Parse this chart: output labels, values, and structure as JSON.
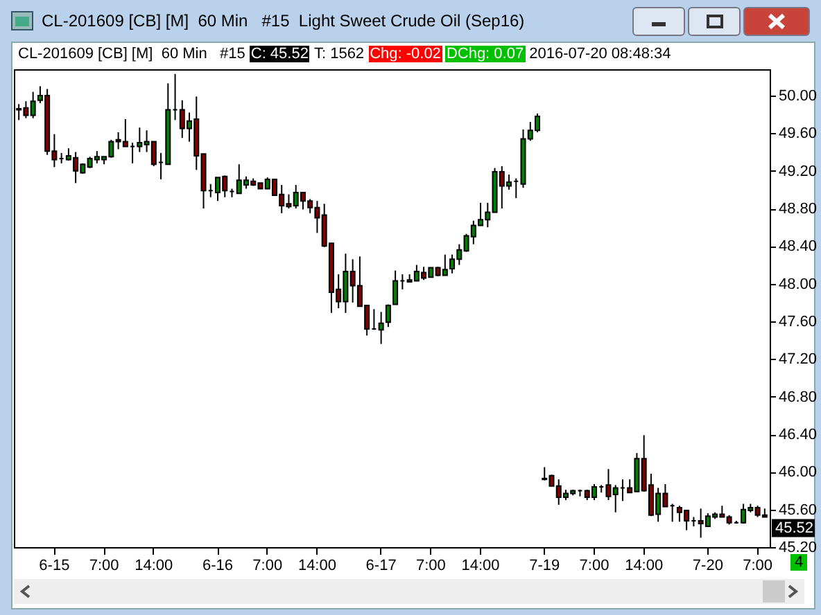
{
  "chart_data": {
    "type": "candlestick",
    "title": "CL-201609 [CB] [M]  60 Min   #15  Light Sweet Crude Oil (Sep16)",
    "subtitle": "CL-201609 [CB] [M]  60 Min   #15",
    "annotations": [
      "C: 45.52",
      "T: 1562",
      "Chg: -0.02",
      "DChg: 0.07",
      "2016-07-20 08:48:34",
      "4",
      "45.52"
    ],
    "categories": [
      null,
      null,
      null,
      null,
      null,
      "6-15",
      null,
      null,
      null,
      null,
      null,
      null,
      "7:00",
      null,
      null,
      null,
      null,
      null,
      null,
      "14:00",
      null,
      null,
      null,
      null,
      null,
      null,
      null,
      null,
      "6-16",
      null,
      null,
      null,
      null,
      null,
      null,
      "7:00",
      null,
      null,
      null,
      null,
      null,
      null,
      "14:00",
      null,
      null,
      null,
      null,
      null,
      null,
      null,
      null,
      "6-17",
      null,
      null,
      null,
      null,
      null,
      null,
      "7:00",
      null,
      null,
      null,
      null,
      null,
      null,
      "14:00",
      null,
      null,
      null,
      null,
      null,
      null,
      null,
      null,
      "7-19",
      null,
      null,
      null,
      null,
      null,
      null,
      "7:00",
      null,
      null,
      null,
      null,
      null,
      null,
      "14:00",
      null,
      null,
      null,
      null,
      null,
      null,
      null,
      null,
      "7-20",
      null,
      null,
      null,
      null,
      null,
      null,
      "7:00",
      null
    ],
    "ohlc": [
      [
        49.86,
        49.91,
        49.74,
        49.85
      ],
      [
        49.87,
        49.94,
        49.76,
        49.79
      ],
      [
        49.79,
        50.04,
        49.76,
        49.94
      ],
      [
        49.95,
        50.1,
        49.92,
        50.0
      ],
      [
        50.0,
        50.07,
        49.37,
        49.41
      ],
      [
        49.41,
        49.59,
        49.24,
        49.32
      ],
      [
        49.33,
        49.39,
        49.28,
        49.33
      ],
      [
        49.32,
        49.44,
        49.31,
        49.36
      ],
      [
        49.34,
        49.4,
        49.07,
        49.2
      ],
      [
        49.18,
        49.28,
        49.17,
        49.27
      ],
      [
        49.24,
        49.35,
        49.23,
        49.33
      ],
      [
        49.32,
        49.41,
        49.28,
        49.35
      ],
      [
        49.32,
        49.35,
        49.27,
        49.35
      ],
      [
        49.35,
        49.53,
        49.34,
        49.51
      ],
      [
        49.53,
        49.61,
        49.43,
        49.51
      ],
      [
        49.51,
        49.75,
        49.46,
        49.46
      ],
      [
        49.46,
        49.5,
        49.28,
        49.46
      ],
      [
        49.46,
        49.66,
        49.4,
        49.5
      ],
      [
        49.48,
        49.63,
        49.4,
        49.51
      ],
      [
        49.51,
        49.51,
        49.25,
        49.27
      ],
      [
        49.29,
        49.39,
        49.11,
        49.29
      ],
      [
        49.27,
        50.13,
        49.27,
        49.85
      ],
      [
        49.85,
        50.23,
        49.74,
        49.85
      ],
      [
        49.85,
        49.95,
        49.55,
        49.65
      ],
      [
        49.65,
        49.82,
        49.51,
        49.73
      ],
      [
        49.75,
        49.99,
        49.21,
        49.36
      ],
      [
        49.38,
        49.38,
        48.8,
        48.99
      ],
      [
        48.99,
        49.06,
        48.92,
        48.99
      ],
      [
        48.97,
        49.13,
        48.88,
        49.13
      ],
      [
        49.14,
        49.15,
        48.92,
        48.99
      ],
      [
        48.98,
        49.01,
        48.92,
        48.98
      ],
      [
        48.96,
        49.27,
        48.96,
        49.1
      ],
      [
        49.05,
        49.14,
        49.01,
        49.1
      ],
      [
        49.09,
        49.12,
        49.04,
        49.05
      ],
      [
        49.07,
        49.07,
        49.01,
        49.01
      ],
      [
        49.01,
        49.13,
        49.01,
        49.11
      ],
      [
        49.11,
        49.11,
        48.94,
        48.94
      ],
      [
        48.95,
        49.05,
        48.75,
        48.83
      ],
      [
        48.85,
        48.95,
        48.8,
        48.82
      ],
      [
        48.83,
        49.05,
        48.8,
        48.97
      ],
      [
        48.97,
        48.97,
        48.79,
        48.88
      ],
      [
        48.88,
        48.9,
        48.75,
        48.81
      ],
      [
        48.81,
        48.88,
        48.54,
        48.7
      ],
      [
        48.73,
        48.85,
        48.39,
        48.4
      ],
      [
        48.43,
        48.43,
        47.69,
        47.91
      ],
      [
        47.94,
        48.1,
        47.74,
        47.81
      ],
      [
        47.81,
        48.32,
        47.69,
        48.13
      ],
      [
        48.13,
        48.26,
        47.8,
        47.98
      ],
      [
        47.98,
        48.29,
        47.76,
        47.76
      ],
      [
        47.77,
        47.77,
        47.45,
        47.52
      ],
      [
        47.52,
        47.73,
        47.51,
        47.52
      ],
      [
        47.51,
        47.7,
        47.36,
        47.58
      ],
      [
        47.59,
        47.78,
        47.54,
        47.77
      ],
      [
        47.78,
        48.14,
        47.78,
        48.03
      ],
      [
        48.03,
        48.1,
        47.94,
        48.03
      ],
      [
        48.02,
        48.1,
        48.02,
        48.04
      ],
      [
        48.03,
        48.2,
        48.03,
        48.13
      ],
      [
        48.12,
        48.18,
        48.04,
        48.06
      ],
      [
        48.07,
        48.17,
        48.07,
        48.17
      ],
      [
        48.17,
        48.18,
        48.08,
        48.09
      ],
      [
        48.09,
        48.31,
        48.09,
        48.15
      ],
      [
        48.16,
        48.31,
        48.11,
        48.26
      ],
      [
        48.26,
        48.42,
        48.2,
        48.36
      ],
      [
        48.35,
        48.53,
        48.34,
        48.51
      ],
      [
        48.5,
        48.67,
        48.42,
        48.62
      ],
      [
        48.62,
        48.86,
        48.62,
        48.68
      ],
      [
        48.68,
        48.86,
        48.6,
        48.76
      ],
      [
        48.76,
        49.23,
        48.76,
        49.19
      ],
      [
        49.19,
        49.25,
        48.8,
        49.04
      ],
      [
        49.04,
        49.16,
        49.0,
        49.08
      ],
      [
        49.09,
        49.12,
        48.91,
        49.09
      ],
      [
        49.06,
        49.64,
        49.02,
        49.54
      ],
      [
        49.54,
        49.72,
        49.52,
        49.63
      ],
      [
        49.63,
        49.81,
        49.61,
        49.78
      ],
      [
        45.93,
        46.05,
        45.91,
        45.92
      ],
      [
        45.96,
        45.97,
        45.85,
        45.85
      ],
      [
        45.85,
        45.92,
        45.65,
        45.73
      ],
      [
        45.73,
        45.81,
        45.7,
        45.77
      ],
      [
        45.77,
        45.81,
        45.75,
        45.8
      ],
      [
        45.8,
        45.81,
        45.74,
        45.8
      ],
      [
        45.8,
        45.81,
        45.7,
        45.73
      ],
      [
        45.73,
        45.87,
        45.7,
        45.84
      ],
      [
        45.84,
        45.86,
        45.78,
        45.84
      ],
      [
        45.86,
        46.03,
        45.7,
        45.74
      ],
      [
        45.76,
        45.86,
        45.57,
        45.83
      ],
      [
        45.83,
        45.92,
        45.69,
        45.83
      ],
      [
        45.83,
        45.92,
        45.78,
        45.78
      ],
      [
        45.79,
        46.2,
        45.79,
        46.14
      ],
      [
        46.14,
        46.39,
        45.79,
        45.8
      ],
      [
        45.86,
        45.98,
        45.53,
        45.54
      ],
      [
        45.55,
        45.83,
        45.47,
        45.77
      ],
      [
        45.77,
        45.87,
        45.63,
        45.63
      ],
      [
        45.64,
        45.66,
        45.47,
        45.64
      ],
      [
        45.62,
        45.64,
        45.47,
        45.57
      ],
      [
        45.59,
        45.59,
        45.38,
        45.48
      ],
      [
        45.48,
        45.52,
        45.42,
        45.48
      ],
      [
        45.48,
        45.61,
        45.3,
        45.45
      ],
      [
        45.42,
        45.56,
        45.42,
        45.53
      ],
      [
        45.52,
        45.57,
        45.5,
        45.55
      ],
      [
        45.55,
        45.64,
        45.52,
        45.52
      ],
      [
        45.52,
        45.54,
        45.44,
        45.46
      ],
      [
        45.46,
        45.48,
        45.45,
        45.46
      ],
      [
        45.46,
        45.66,
        45.45,
        45.6
      ],
      [
        45.59,
        45.66,
        45.57,
        45.62
      ],
      [
        45.62,
        45.64,
        45.52,
        45.54
      ],
      [
        45.54,
        45.61,
        45.52,
        45.52
      ]
    ],
    "colors": [
      "#000000",
      "#800000",
      "#008000",
      "#008000",
      "#800000",
      "#800000",
      "#000000",
      "#008000",
      "#800000",
      "#008000",
      "#008000",
      "#008000",
      "#008000",
      "#008000",
      "#800000",
      "#800000",
      "#000000",
      "#008000",
      "#008000",
      "#800000",
      "#000000",
      "#008000",
      "#000000",
      "#800000",
      "#008000",
      "#800000",
      "#800000",
      "#000000",
      "#008000",
      "#800000",
      "#000000",
      "#008000",
      "#008000",
      "#800000",
      "#800000",
      "#008000",
      "#800000",
      "#800000",
      "#800000",
      "#008000",
      "#800000",
      "#800000",
      "#800000",
      "#800000",
      "#800000",
      "#800000",
      "#008000",
      "#800000",
      "#800000",
      "#800000",
      "#000000",
      "#008000",
      "#008000",
      "#008000",
      "#000000",
      "#008000",
      "#008000",
      "#800000",
      "#008000",
      "#800000",
      "#008000",
      "#008000",
      "#008000",
      "#008000",
      "#008000",
      "#008000",
      "#008000",
      "#008000",
      "#800000",
      "#008000",
      "#000000",
      "#008000",
      "#008000",
      "#008000",
      "#800000",
      "#800000",
      "#800000",
      "#008000",
      "#008000",
      "#000000",
      "#800000",
      "#008000",
      "#000000",
      "#800000",
      "#008000",
      "#000000",
      "#800000",
      "#008000",
      "#800000",
      "#800000",
      "#008000",
      "#800000",
      "#000000",
      "#800000",
      "#800000",
      "#000000",
      "#800000",
      "#008000",
      "#008000",
      "#800000",
      "#800000",
      "#000000",
      "#008000",
      "#008000",
      "#800000",
      "#800000"
    ],
    "ylim": [
      45.2,
      50.28
    ],
    "yticks": [
      {
        "value": 45.2,
        "label": "45.20"
      },
      {
        "value": 45.6,
        "label": "45.60"
      },
      {
        "value": 46.0,
        "label": "46.00"
      },
      {
        "value": 46.4,
        "label": "46.40"
      },
      {
        "value": 46.8,
        "label": "46.80"
      },
      {
        "value": 47.2,
        "label": "47.20"
      },
      {
        "value": 47.6,
        "label": "47.60"
      },
      {
        "value": 48.0,
        "label": "48.00"
      },
      {
        "value": 48.4,
        "label": "48.40"
      },
      {
        "value": 48.8,
        "label": "48.80"
      },
      {
        "value": 49.2,
        "label": "49.20"
      },
      {
        "value": 49.6,
        "label": "49.60"
      },
      {
        "value": 50.0,
        "label": "50.00"
      }
    ]
  }
}
